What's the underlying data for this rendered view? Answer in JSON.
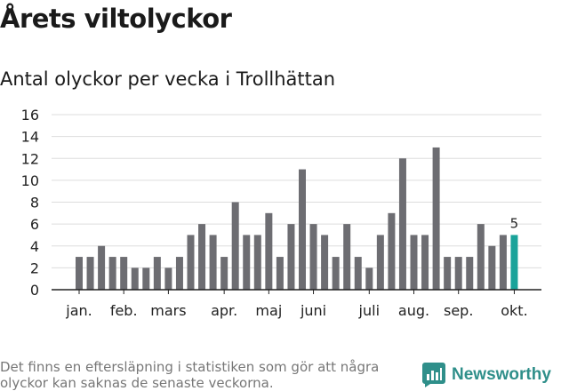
{
  "title": "Årets viltolyckor",
  "subtitle": "Antal olyckor per vecka i Trollhättan",
  "footnote": "Det finns en eftersläpning i statistiken som gör att några olyckor kan saknas de senaste veckorna.",
  "brand": {
    "name": "Newsworthy",
    "icon": "newsworthy-logo-icon"
  },
  "colors": {
    "bar": "#6d6d72",
    "highlight": "#1aa39a",
    "grid": "#dddddd",
    "axis": "#222222",
    "brand": "#2f8f8a"
  },
  "chart_data": {
    "type": "bar",
    "title": "Antal olyckor per vecka i Trollhättan",
    "xlabel": "",
    "ylabel": "",
    "ylim": [
      0,
      16
    ],
    "yticks": [
      "0",
      "2",
      "4",
      "6",
      "8",
      "10",
      "12",
      "14",
      "16"
    ],
    "grid": true,
    "values": [
      3,
      3,
      4,
      3,
      3,
      2,
      2,
      3,
      2,
      3,
      5,
      6,
      5,
      3,
      8,
      5,
      5,
      7,
      3,
      6,
      11,
      6,
      5,
      3,
      6,
      3,
      2,
      5,
      7,
      12,
      5,
      5,
      13,
      3,
      3,
      3,
      6,
      4,
      5,
      5
    ],
    "highlight_index": 39,
    "highlight_label": "5",
    "months": [
      {
        "label": "jan.",
        "week_index": 0
      },
      {
        "label": "feb.",
        "week_index": 4
      },
      {
        "label": "mars",
        "week_index": 8
      },
      {
        "label": "apr.",
        "week_index": 13
      },
      {
        "label": "maj",
        "week_index": 17
      },
      {
        "label": "juni",
        "week_index": 21
      },
      {
        "label": "juli",
        "week_index": 26
      },
      {
        "label": "aug.",
        "week_index": 30
      },
      {
        "label": "sep.",
        "week_index": 34
      },
      {
        "label": "okt.",
        "week_index": 39
      }
    ]
  }
}
